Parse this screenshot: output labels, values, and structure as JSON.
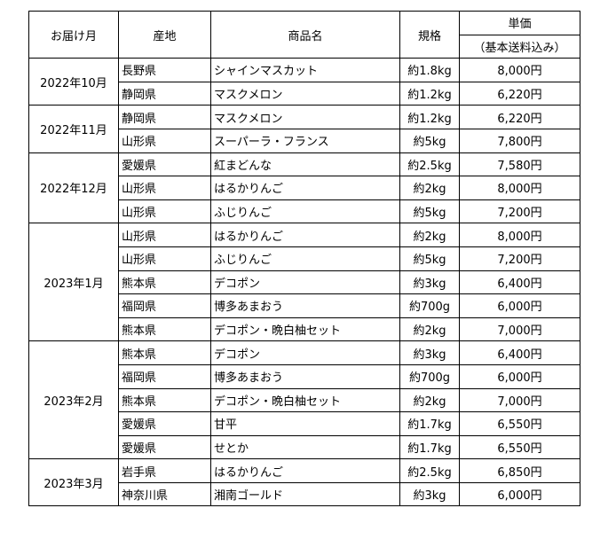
{
  "headers": {
    "month": "お届け月",
    "origin": "産地",
    "product": "商品名",
    "spec": "規格",
    "price": "単価",
    "price_note": "（基本送料込み）"
  },
  "groups": [
    {
      "month": "2022年10月",
      "items": [
        {
          "origin": "長野県",
          "product": "シャインマスカット",
          "spec": "約1.8kg",
          "price": "8,000円"
        },
        {
          "origin": "静岡県",
          "product": "マスクメロン",
          "spec": "約1.2kg",
          "price": "6,220円"
        }
      ]
    },
    {
      "month": "2022年11月",
      "items": [
        {
          "origin": "静岡県",
          "product": "マスクメロン",
          "spec": "約1.2kg",
          "price": "6,220円"
        },
        {
          "origin": "山形県",
          "product": "スーパーラ・フランス",
          "spec": "約5kg",
          "price": "7,800円"
        }
      ]
    },
    {
      "month": "2022年12月",
      "items": [
        {
          "origin": "愛媛県",
          "product": "紅まどんな",
          "spec": "約2.5kg",
          "price": "7,580円"
        },
        {
          "origin": "山形県",
          "product": "はるかりんご",
          "spec": "約2kg",
          "price": "8,000円"
        },
        {
          "origin": "山形県",
          "product": "ふじりんご",
          "spec": "約5kg",
          "price": "7,200円"
        }
      ]
    },
    {
      "month": "2023年1月",
      "items": [
        {
          "origin": "山形県",
          "product": "はるかりんご",
          "spec": "約2kg",
          "price": "8,000円"
        },
        {
          "origin": "山形県",
          "product": "ふじりんご",
          "spec": "約5kg",
          "price": "7,200円"
        },
        {
          "origin": "熊本県",
          "product": "デコポン",
          "spec": "約3kg",
          "price": "6,400円"
        },
        {
          "origin": "福岡県",
          "product": "博多あまおう",
          "spec": "約700g",
          "price": "6,000円"
        },
        {
          "origin": "熊本県",
          "product": "デコポン・晩白柚セット",
          "spec": "約2kg",
          "price": "7,000円"
        }
      ]
    },
    {
      "month": "2023年2月",
      "items": [
        {
          "origin": "熊本県",
          "product": "デコポン",
          "spec": "約3kg",
          "price": "6,400円"
        },
        {
          "origin": "福岡県",
          "product": "博多あまおう",
          "spec": "約700g",
          "price": "6,000円"
        },
        {
          "origin": "熊本県",
          "product": "デコポン・晩白柚セット",
          "spec": "約2kg",
          "price": "7,000円"
        },
        {
          "origin": "愛媛県",
          "product": "甘平",
          "spec": "約1.7kg",
          "price": "6,550円"
        },
        {
          "origin": "愛媛県",
          "product": "せとか",
          "spec": "約1.7kg",
          "price": "6,550円"
        }
      ]
    },
    {
      "month": "2023年3月",
      "items": [
        {
          "origin": "岩手県",
          "product": "はるかりんご",
          "spec": "約2.5kg",
          "price": "6,850円"
        },
        {
          "origin": "神奈川県",
          "product": "湘南ゴールド",
          "spec": "約3kg",
          "price": "6,000円"
        }
      ]
    }
  ]
}
